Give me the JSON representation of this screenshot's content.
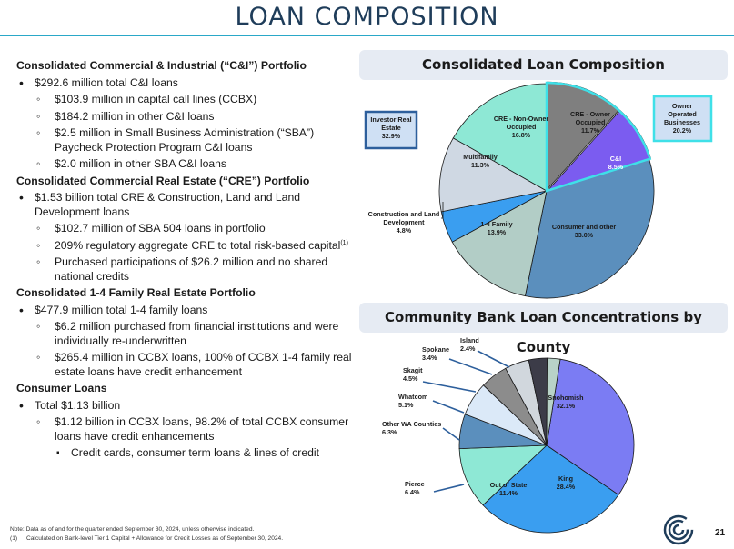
{
  "title": "LOAN COMPOSITION",
  "left": {
    "sections": [
      {
        "heading": "Consolidated Commercial & Industrial (“C&I”) Portfolio",
        "bullets": [
          {
            "text": "$292.6 million total C&I loans",
            "sub": [
              "$103.9 million in capital call lines (CCBX)",
              "$184.2 million in other C&I loans",
              "$2.5 million in Small Business Administration (“SBA”) Paycheck Protection Program C&I loans",
              "$2.0 million in other SBA C&I loans"
            ]
          }
        ]
      },
      {
        "heading": "Consolidated Commercial Real Estate (“CRE”) Portfolio",
        "bullets": [
          {
            "text": "$1.53 billion total CRE & Construction, Land and Land Development loans",
            "sub": [
              "$102.7 million of SBA 504 loans in portfolio",
              "209% regulatory aggregate CRE to total risk-based capital",
              "Purchased participations of $26.2 million and no shared national credits"
            ],
            "sup_index": 1,
            "sup": "(1)"
          }
        ]
      },
      {
        "heading": "Consolidated 1-4 Family Real Estate Portfolio",
        "bullets": [
          {
            "text": "$477.9 million total 1-4 family loans",
            "sub": [
              "$6.2 million purchased from financial institutions and were individually re-underwritten",
              "$265.4 million in CCBX loans, 100% of CCBX 1-4 family real estate loans have credit enhancement"
            ]
          }
        ]
      },
      {
        "heading": "Consumer Loans",
        "bullets": [
          {
            "text": "Total $1.13 billion",
            "sub": [
              "$1.12 billion in CCBX loans, 98.2% of total CCBX consumer loans have credit enhancements"
            ],
            "subsub": [
              "Credit cards, consumer term loans & lines of credit"
            ]
          }
        ]
      }
    ]
  },
  "notes": {
    "line1": "Note:  Data as of and for the quarter ended September 30, 2024, unless otherwise indicated.",
    "line2_num": "(1)",
    "line2": "Calculated on Bank-level Tier 1 Capital + Allowance for Credit Losses as of September 30, 2024."
  },
  "page_number": "21",
  "colors": {
    "accent": "#2aa8c8",
    "title": "#1f3d5a"
  },
  "chart_data": [
    {
      "type": "pie",
      "title": "Consolidated Loan Composition",
      "slices": [
        {
          "label": "CRE - Owner Occupied",
          "value": 11.7,
          "display": "11.7%",
          "color": "#7f7f7f"
        },
        {
          "label": "C&I",
          "value": 8.5,
          "display": "8.5%",
          "color": "#7b5cf0"
        },
        {
          "label": "Consumer and other",
          "value": 33.0,
          "display": "33.0%",
          "color": "#5b8fbd"
        },
        {
          "label": "1-4 Family",
          "value": 13.9,
          "display": "13.9%",
          "color": "#b2cdc6"
        },
        {
          "label": "Construction and Land Development",
          "value": 4.8,
          "display": "4.8%",
          "color": "#3a9ef0"
        },
        {
          "label": "Multifamily",
          "value": 11.3,
          "display": "11.3%",
          "color": "#cfd8e3"
        },
        {
          "label": "CRE - Non-Owner Occupied",
          "value": 16.8,
          "display": "16.8%",
          "color": "#8ee8d5"
        }
      ],
      "callouts": [
        {
          "label": "Investor Real Estate",
          "display": "32.9%"
        },
        {
          "label": "Owner Operated Businesses",
          "display": "20.2%"
        }
      ]
    },
    {
      "type": "pie",
      "title": "Community Bank Loan Concentrations by County",
      "slices": [
        {
          "label": "Snohomish",
          "value": 32.1,
          "display": "32.1%",
          "color": "#7b7cf3"
        },
        {
          "label": "King",
          "value": 28.4,
          "display": "28.4%",
          "color": "#3a9ef0"
        },
        {
          "label": "Out of State",
          "value": 11.4,
          "display": "11.4%",
          "color": "#8ee8d5"
        },
        {
          "label": "Pierce",
          "value": 6.4,
          "display": "6.4%",
          "color": "#5b8fbd"
        },
        {
          "label": "Other WA Counties",
          "value": 6.3,
          "display": "6.3%",
          "color": "#dbe9f8"
        },
        {
          "label": "Whatcom",
          "value": 5.1,
          "display": "5.1%",
          "color": "#8c8c8c"
        },
        {
          "label": "Skagit",
          "value": 4.5,
          "display": "4.5%",
          "color": "#d1d7dd"
        },
        {
          "label": "Spokane",
          "value": 3.4,
          "display": "3.4%",
          "color": "#3c3c48"
        },
        {
          "label": "Island",
          "value": 2.4,
          "display": "2.4%",
          "color": "#b8d2c8"
        }
      ]
    }
  ]
}
